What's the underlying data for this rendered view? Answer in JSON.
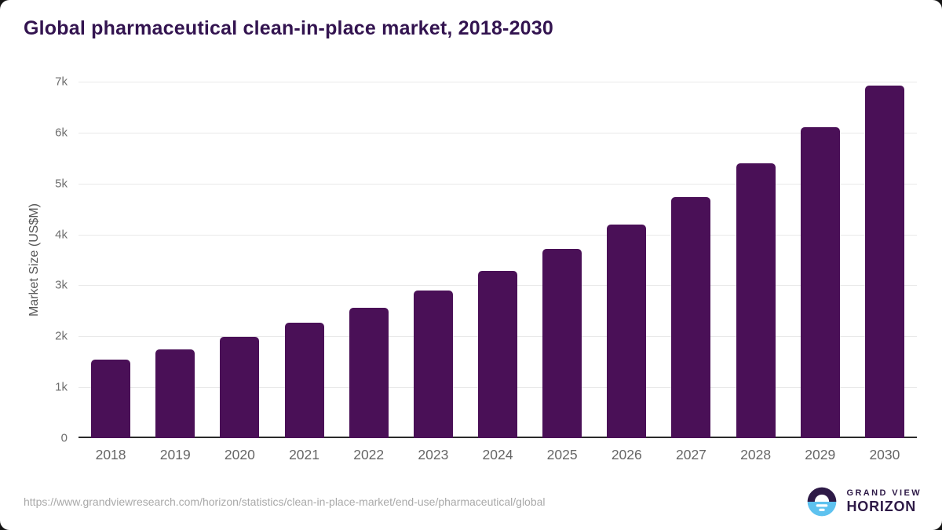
{
  "page": {
    "title": "Global pharmaceutical clean-in-place market, 2018-2030",
    "source_url": "https://www.grandviewresearch.com/horizon/statistics/clean-in-place-market/end-use/pharmaceutical/global"
  },
  "branding": {
    "name_line1": "GRAND VIEW",
    "name_line2": "HORIZON",
    "logo_icon": "horizon-sunset-circle-icon",
    "logo_purple": "#2e1a47",
    "logo_blue": "#5ec2ef"
  },
  "colors": {
    "bar": "#4a1057",
    "title_text": "#331450",
    "axis_text": "#6e6e6e",
    "grid": "#e9e9e9",
    "axis_line": "#2b2b2b",
    "url_text": "#a9a9a9"
  },
  "chart_data": {
    "type": "bar",
    "title": "Global pharmaceutical clean-in-place market, 2018-2030",
    "categories": [
      "2018",
      "2019",
      "2020",
      "2021",
      "2022",
      "2023",
      "2024",
      "2025",
      "2026",
      "2027",
      "2028",
      "2029",
      "2030"
    ],
    "values": [
      1540,
      1740,
      1990,
      2260,
      2560,
      2900,
      3280,
      3710,
      4190,
      4740,
      5390,
      6100,
      6930
    ],
    "xlabel": "",
    "ylabel": "Market Size (US$M)",
    "ylim": [
      0,
      7000
    ],
    "yticks": [
      {
        "value": 0,
        "label": "0"
      },
      {
        "value": 1000,
        "label": "1k"
      },
      {
        "value": 2000,
        "label": "2k"
      },
      {
        "value": 3000,
        "label": "3k"
      },
      {
        "value": 4000,
        "label": "4k"
      },
      {
        "value": 5000,
        "label": "5k"
      },
      {
        "value": 6000,
        "label": "6k"
      },
      {
        "value": 7000,
        "label": "7k"
      }
    ],
    "grid": true,
    "legend": false
  }
}
